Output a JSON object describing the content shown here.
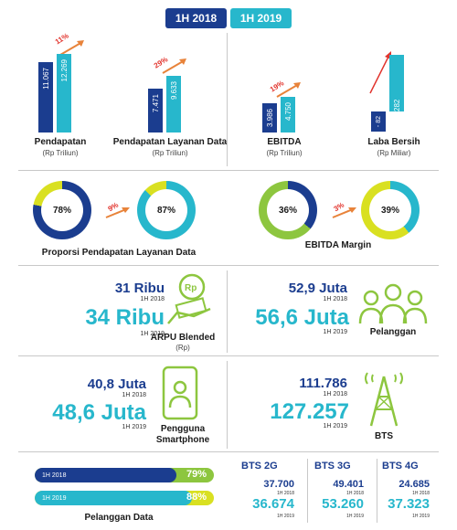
{
  "legend": {
    "y2018": "1H 2018",
    "y2019": "1H 2019"
  },
  "colors": {
    "navy": "#1b3d8f",
    "cyan": "#27b7cc",
    "green": "#8dc63f",
    "yellow": "#d9e021",
    "red": "#e2342d"
  },
  "bars": [
    {
      "label": "Pendapatan",
      "unit": "(Rp Triliun)",
      "v2018": "11.067",
      "v2019": "12.269",
      "growth": "11%"
    },
    {
      "label": "Pendapatan Layanan Data",
      "unit": "(Rp Triliun)",
      "v2018": "7.471",
      "v2019": "9.633",
      "growth": "29%"
    },
    {
      "label": "EBITDA",
      "unit": "(Rp Triliun)",
      "v2018": "3.986",
      "v2019": "4.750",
      "growth": "19%"
    },
    {
      "label": "Laba Bersih",
      "unit": "(Rp Miliar)",
      "v2018": "- 82",
      "v2019": "282",
      "growth": ""
    }
  ],
  "donuts": {
    "left": {
      "a": "78%",
      "b": "87%",
      "growth": "9%",
      "title": "Proporsi Pendapatan Layanan Data"
    },
    "right": {
      "a": "36%",
      "b": "39%",
      "growth": "3%",
      "title": "EBITDA Margin"
    }
  },
  "arpu": {
    "v2018": "31 Ribu",
    "p2018": "1H 2018",
    "v2019": "34 Ribu",
    "p2019": "1H 2019",
    "label": "ARPU Blended",
    "unit": "(Rp)",
    "icon_text": "Rp"
  },
  "pelanggan": {
    "v2018": "52,9 Juta",
    "p2018": "1H 2018",
    "v2019": "56,6 Juta",
    "p2019": "1H 2019",
    "label": "Pelanggan"
  },
  "smartphone": {
    "v2018": "40,8 Juta",
    "p2018": "1H 2018",
    "v2019": "48,6 Juta",
    "p2019": "1H 2019",
    "label1": "Pengguna",
    "label2": "Smartphone"
  },
  "bts": {
    "v2018": "111.786",
    "p2018": "1H 2018",
    "v2019": "127.257",
    "p2019": "1H 2019",
    "label": "BTS"
  },
  "pdata": {
    "r2018": "1H 2018",
    "v2018": "79%",
    "f2018": 0.79,
    "r2019": "1H 2019",
    "v2019": "88%",
    "f2019": 0.88,
    "label": "Pelanggan Data"
  },
  "btsg": [
    {
      "label": "BTS 2G",
      "v2018": "37.700",
      "p2018": "1H 2018",
      "v2019": "36.674",
      "p2019": "1H 2019"
    },
    {
      "label": "BTS 3G",
      "v2018": "49.401",
      "p2018": "1H 2018",
      "v2019": "53.260",
      "p2019": "1H 2019"
    },
    {
      "label": "BTS 4G",
      "v2018": "24.685",
      "p2018": "1H 2018",
      "v2019": "37.323",
      "p2019": "1H 2019"
    }
  ]
}
